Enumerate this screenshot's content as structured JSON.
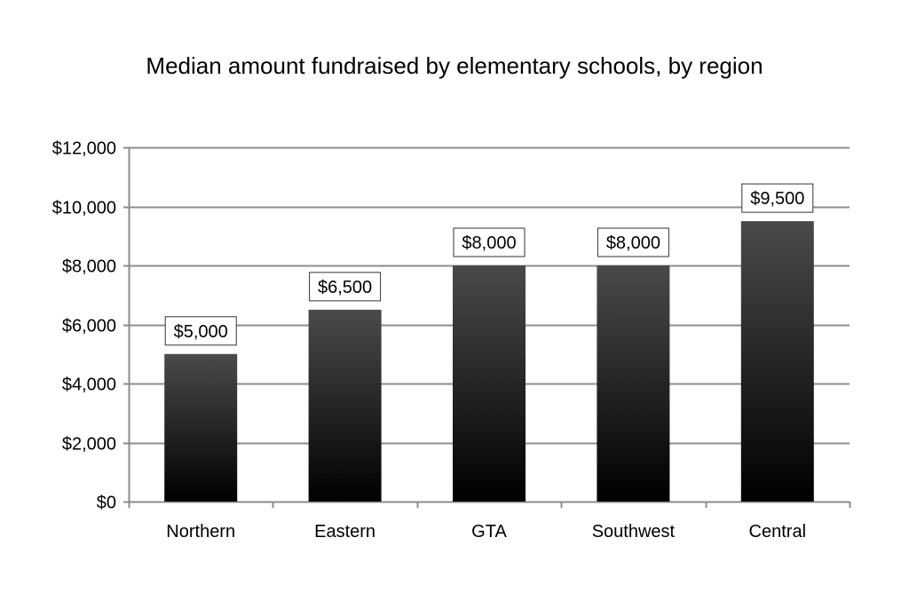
{
  "colors": {
    "background": "#ffffff",
    "gridline": "#8c8c8c",
    "axis": "#8c8c8c",
    "bar_top": "#4a4a4a",
    "bar_bottom": "#000000",
    "label_border": "#333333"
  },
  "chart_data": {
    "type": "bar",
    "title": "Median amount fundraised by elementary schools, by region",
    "xlabel": "",
    "ylabel": "",
    "categories": [
      "Northern",
      "Eastern",
      "GTA",
      "Southwest",
      "Central"
    ],
    "values": [
      5000,
      6500,
      8000,
      8000,
      9500
    ],
    "data_labels": [
      "$5,000",
      "$6,500",
      "$8,000",
      "$8,000",
      "$9,500"
    ],
    "ylim": [
      0,
      12000
    ],
    "yticks": [
      0,
      2000,
      4000,
      6000,
      8000,
      10000,
      12000
    ],
    "ytick_labels": [
      "$0",
      "$2,000",
      "$4,000",
      "$6,000",
      "$8,000",
      "$10,000",
      "$12,000"
    ],
    "grid": true,
    "legend": "none",
    "bar_fill": "vertical gradient"
  }
}
